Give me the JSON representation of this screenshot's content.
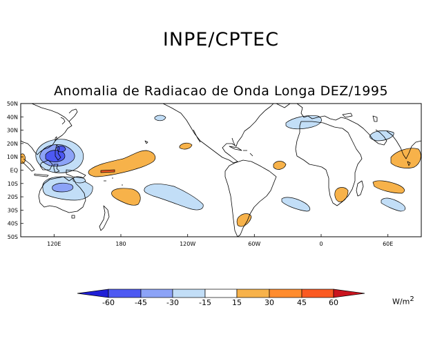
{
  "header": {
    "title": "INPE/CPTEC",
    "subtitle": "Anomalia de Radiacao de Onda Longa DEZ/1995"
  },
  "chart_data": {
    "type": "heatmap",
    "title": "Anomalia de Radiacao de Onda Longa DEZ/1995",
    "projection": "cylindrical equidistant",
    "lon_range_deg_east": [
      90,
      450
    ],
    "lat_range": [
      -50,
      50
    ],
    "lat_ticks": [
      "50N",
      "40N",
      "30N",
      "20N",
      "10N",
      "EQ",
      "10S",
      "20S",
      "30S",
      "40S",
      "50S"
    ],
    "lon_ticks": [
      "120E",
      "180",
      "120W",
      "60W",
      "0",
      "60E"
    ],
    "colorbar": {
      "levels": [
        "-60",
        "-45",
        "-30",
        "-15",
        "15",
        "30",
        "45",
        "60"
      ],
      "colors": [
        "#1f1fd6",
        "#4d59f2",
        "#8ca3f7",
        "#c2def7",
        "#ffffff",
        "#f7b24a",
        "#ff8c2e",
        "#fa5a22",
        "#c9141e"
      ],
      "units": "W/m",
      "units_exp": "2"
    },
    "anomalies": [
      {
        "name": "philippines-negative",
        "center": [
          133,
          12
        ],
        "value": -45
      },
      {
        "name": "maritime-continent-negative",
        "center": [
          136,
          -12
        ],
        "value": -30
      },
      {
        "name": "central-pacific-positive",
        "center": [
          195,
          -1
        ],
        "value": 30
      },
      {
        "name": "south-pacific-positive",
        "center": [
          202,
          -21
        ],
        "value": 15
      },
      {
        "name": "east-pacific-negative",
        "center": [
          218,
          -25
        ],
        "value": -15
      },
      {
        "name": "atlantic-positive",
        "center": [
          -37,
          -1
        ],
        "value": 15
      },
      {
        "name": "southern-africa-positive",
        "center": [
          18,
          -20
        ],
        "value": 15
      },
      {
        "name": "indian-ocean-positive",
        "center": [
          84,
          2
        ],
        "value": 15
      },
      {
        "name": "mediterranean-negative",
        "center": [
          5,
          36
        ],
        "value": -15
      }
    ]
  }
}
